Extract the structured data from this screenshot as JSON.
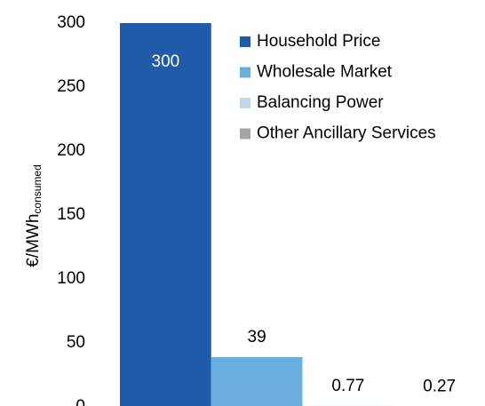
{
  "chart_data": {
    "type": "bar",
    "y_label": "€/MWh",
    "y_label_sub": "consumed",
    "categories": [
      "Household Price",
      "Wholesale Market",
      "Balancing Power",
      "Other Ancillary Services"
    ],
    "values": [
      300,
      39,
      0.77,
      0.27
    ],
    "colors": [
      "#1f5ba8",
      "#6aaede",
      "#bdd7ef",
      "#a5a5a5"
    ],
    "ylim": [
      0,
      300
    ],
    "yticks": [
      0,
      50,
      100,
      150,
      200,
      250,
      300
    ],
    "grid": false,
    "legend": "upper right"
  }
}
